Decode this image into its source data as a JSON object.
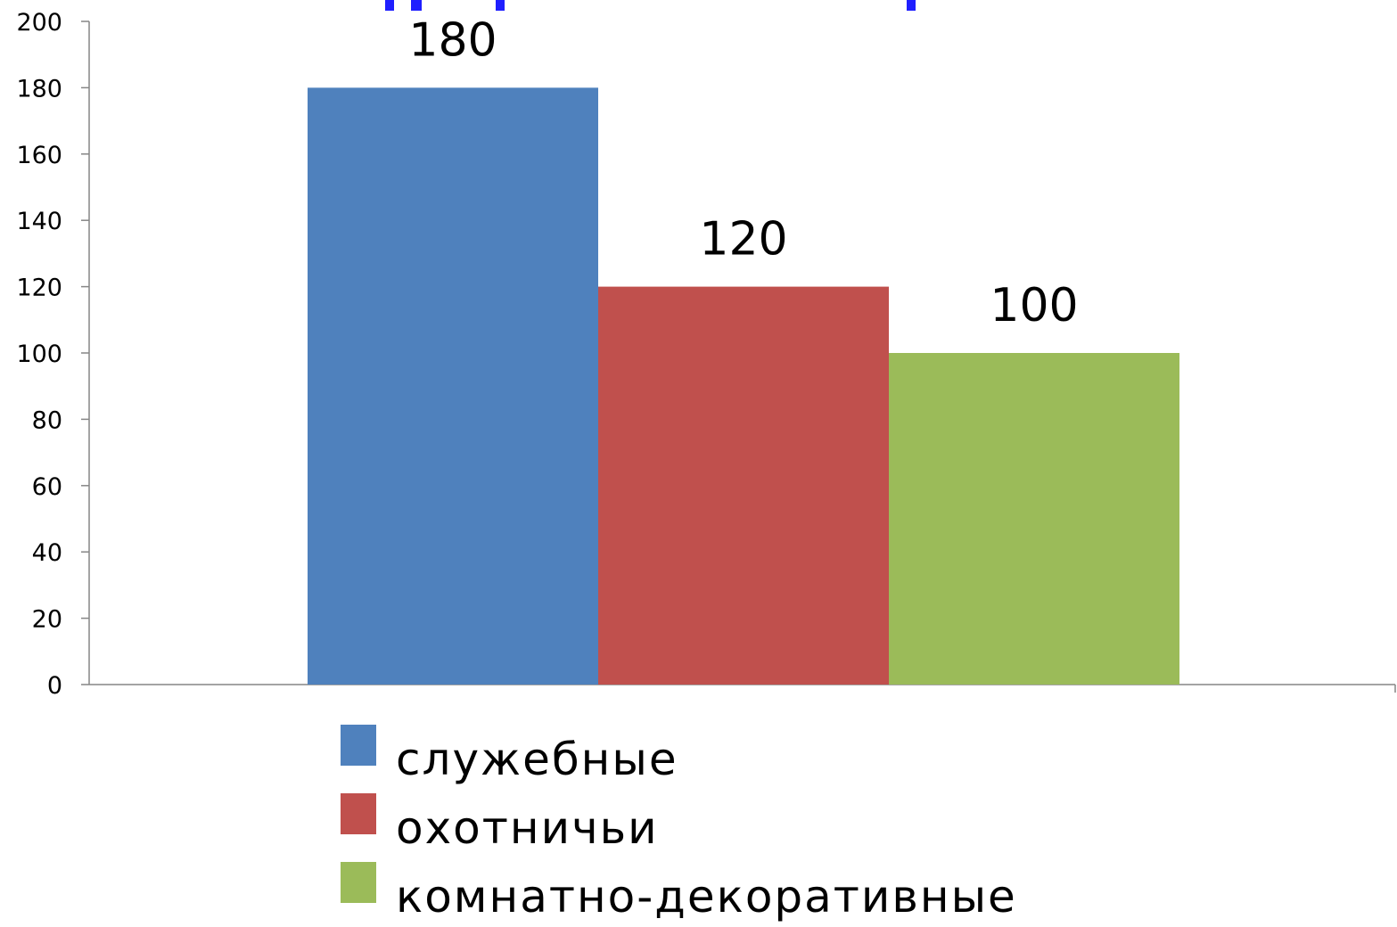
{
  "chart_data": {
    "type": "bar",
    "categories": [
      ""
    ],
    "series": [
      {
        "name": "служебные",
        "values": [
          180
        ],
        "color": "#4F81BD"
      },
      {
        "name": "охотничьи",
        "values": [
          120
        ],
        "color": "#C0504D"
      },
      {
        "name": "комнатно-декоративные",
        "values": [
          100
        ],
        "color": "#9BBB59"
      }
    ],
    "ylim": [
      0,
      200
    ],
    "yticks": [
      0,
      20,
      40,
      60,
      80,
      100,
      120,
      140,
      160,
      180,
      200
    ],
    "data_labels": [
      "180",
      "120",
      "100"
    ],
    "grid": false,
    "legend": {
      "placement": "bottom",
      "entries": [
        "служебные",
        "охотничьи",
        "комнатно-декоративные"
      ]
    },
    "title_fragment_color": "#1F1FFF"
  }
}
